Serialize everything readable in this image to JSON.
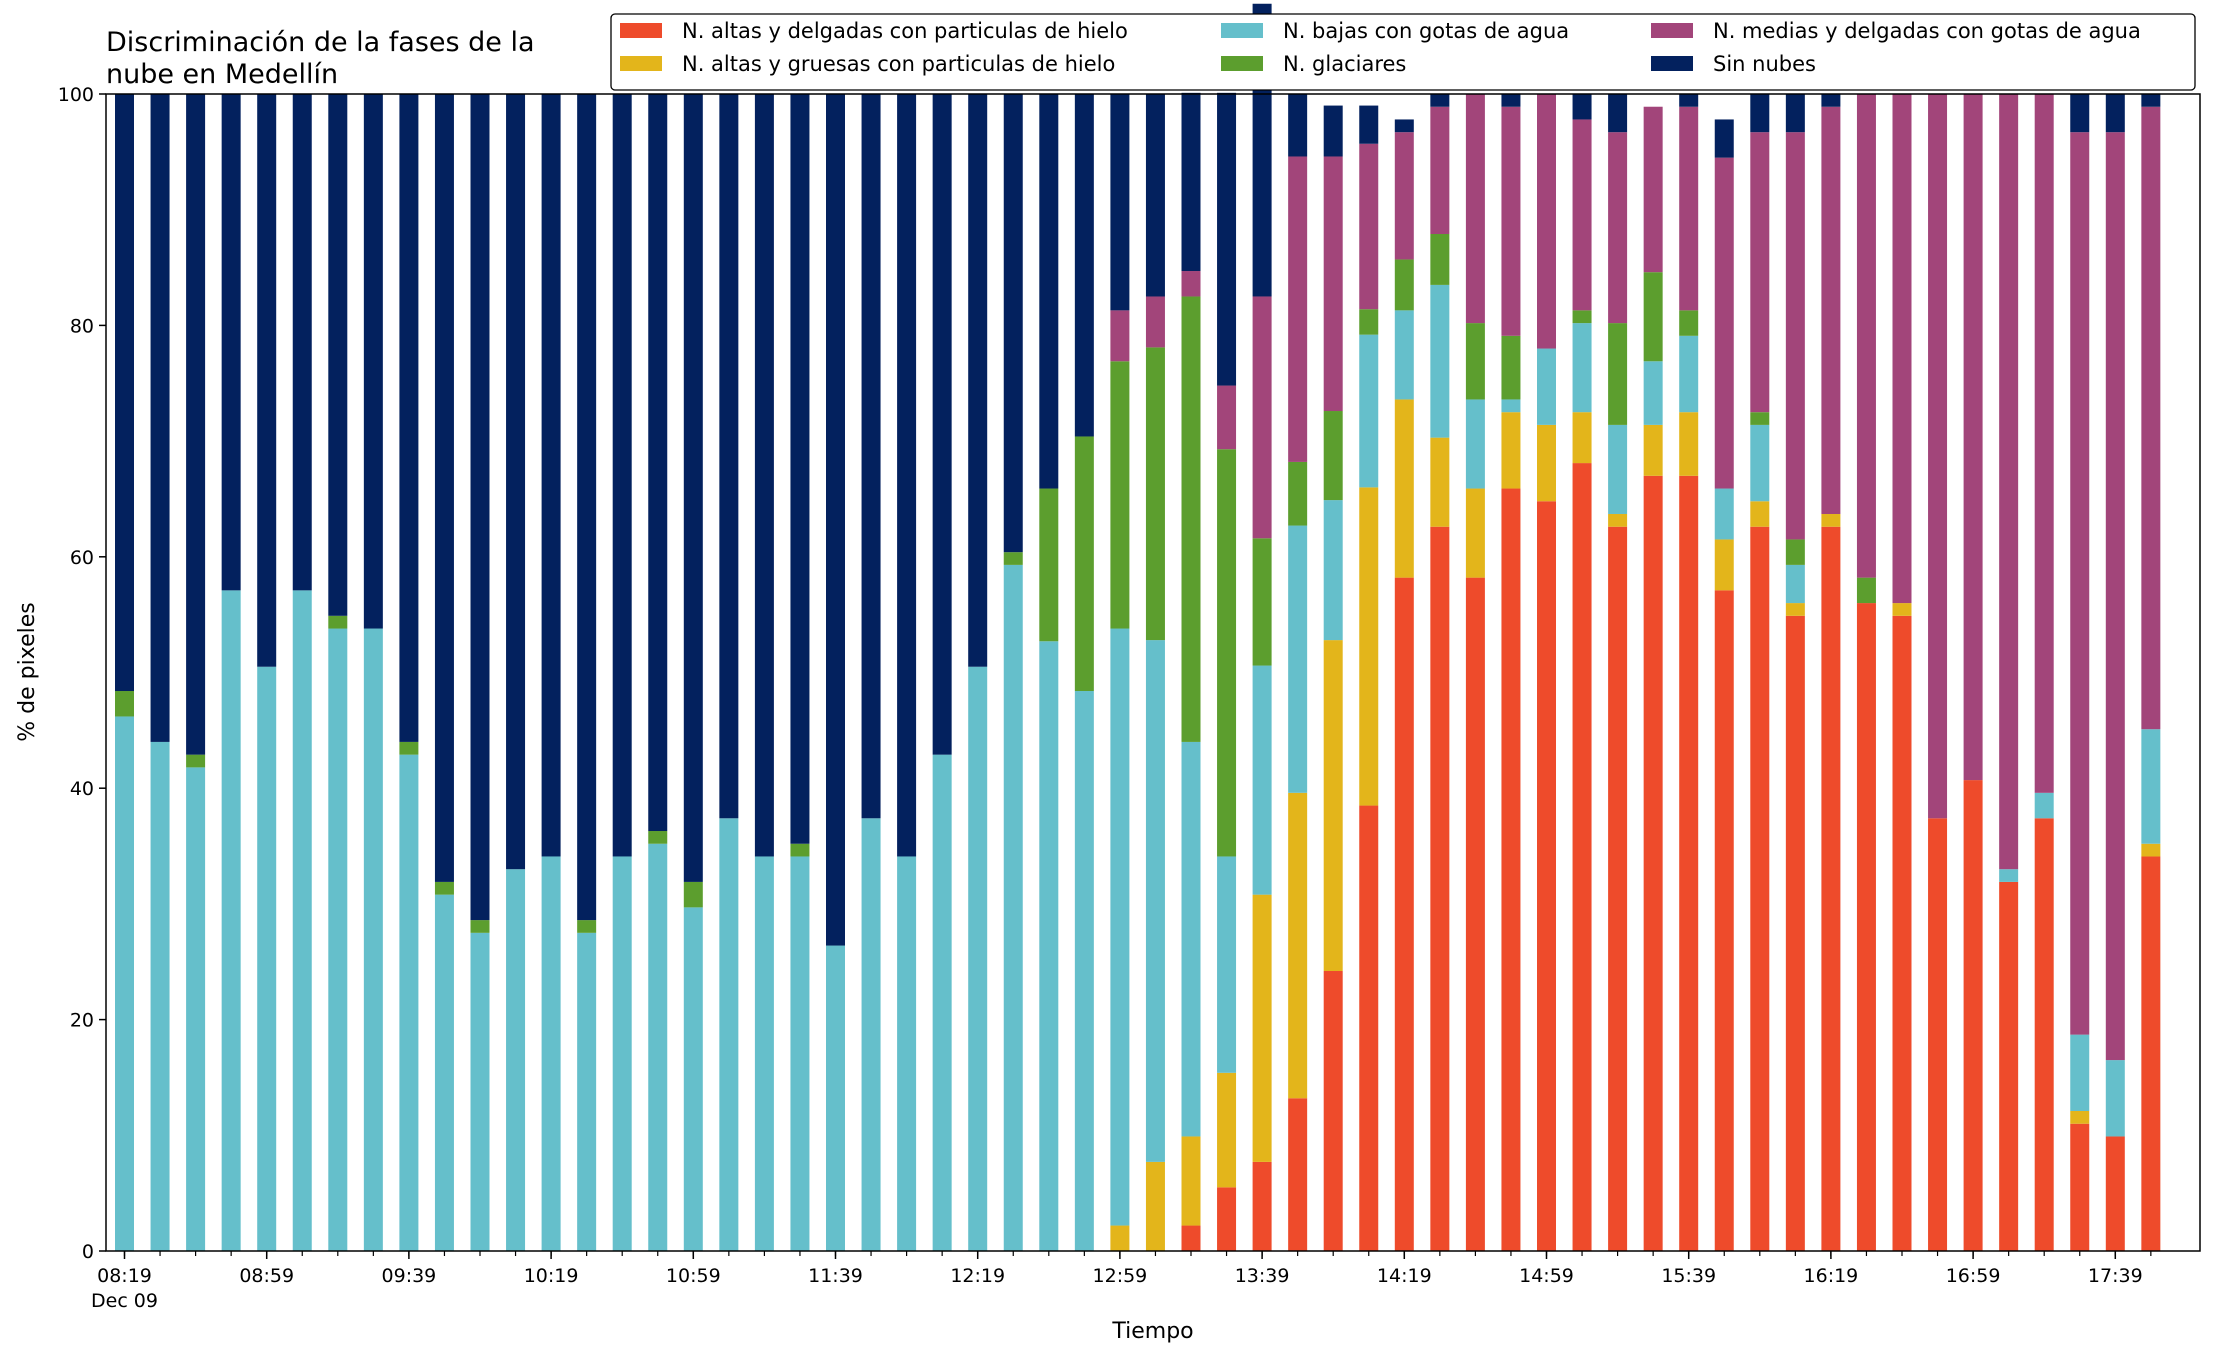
{
  "chart_data": {
    "type": "bar",
    "stacked": true,
    "title": "Discriminación de la fases de la\nnube en Medellín",
    "xlabel": "Tiempo",
    "ylabel": "% de pixeles",
    "ylim": [
      0,
      100
    ],
    "yticks": [
      "0",
      "20",
      "40",
      "60",
      "80",
      "100"
    ],
    "grid": false,
    "legend_position": "top-right",
    "x_date_label": "Dec 09",
    "x_tick_labels": [
      "08:19",
      "08:59",
      "09:39",
      "10:19",
      "10:59",
      "11:39",
      "12:19",
      "12:59",
      "13:39",
      "14:19",
      "14:59",
      "15:39",
      "16:19",
      "16:59",
      "17:39"
    ],
    "categories": [
      "08:19",
      "08:29",
      "08:39",
      "08:49",
      "08:59",
      "09:09",
      "09:19",
      "09:29",
      "09:39",
      "09:49",
      "09:59",
      "10:09",
      "10:19",
      "10:29",
      "10:39",
      "10:49",
      "10:59",
      "11:09",
      "11:19",
      "11:29",
      "11:39",
      "11:49",
      "11:59",
      "12:09",
      "12:19",
      "12:29",
      "12:39",
      "12:49",
      "12:59",
      "13:09",
      "13:19",
      "13:29",
      "13:39",
      "13:49",
      "13:59",
      "14:09",
      "14:19",
      "14:29",
      "14:39",
      "14:49",
      "14:59",
      "15:09",
      "15:19",
      "15:29",
      "15:39",
      "15:49",
      "15:59",
      "16:09",
      "16:19",
      "16:29",
      "16:39",
      "16:49",
      "16:59",
      "17:09",
      "17:19",
      "17:29",
      "17:39",
      "17:49"
    ],
    "series": [
      {
        "name": "N. altas y delgadas con particulas de hielo",
        "color": "#ee4b2b",
        "values": [
          0,
          0,
          0,
          0,
          0,
          0,
          0,
          0,
          0,
          0,
          0,
          0,
          0,
          0,
          0,
          0,
          0,
          0,
          0,
          0,
          0,
          0,
          0,
          0,
          0,
          0,
          0,
          0,
          0,
          0,
          2.2,
          5.5,
          7.7,
          13.2,
          24.2,
          38.5,
          58.2,
          62.6,
          58.2,
          65.9,
          64.8,
          68.1,
          62.6,
          67.0,
          67.0,
          57.1,
          62.6,
          54.9,
          62.6,
          56.0,
          54.9,
          37.4,
          40.7,
          31.9,
          37.4,
          11.0,
          9.9,
          34.1
        ]
      },
      {
        "name": "N. altas y gruesas con particulas de hielo",
        "color": "#e3b51b",
        "values": [
          0,
          0,
          0,
          0,
          0,
          0,
          0,
          0,
          0,
          0,
          0,
          0,
          0,
          0,
          0,
          0,
          0,
          0,
          0,
          0,
          0,
          0,
          0,
          0,
          0,
          0,
          0,
          0,
          2.2,
          7.7,
          7.7,
          9.9,
          23.1,
          26.4,
          28.6,
          27.5,
          15.4,
          7.7,
          7.7,
          6.6,
          6.6,
          4.4,
          1.1,
          4.4,
          5.5,
          4.4,
          2.2,
          1.1,
          1.1,
          0,
          1.1,
          0,
          0,
          0,
          0,
          1.1,
          0,
          1.1
        ]
      },
      {
        "name": "N. bajas con gotas de agua",
        "color": "#65bfcb",
        "values": [
          46.2,
          44.0,
          41.8,
          57.1,
          50.5,
          57.1,
          53.8,
          53.8,
          42.9,
          30.8,
          27.5,
          33.0,
          34.1,
          27.5,
          34.1,
          35.2,
          29.7,
          37.4,
          34.1,
          34.1,
          26.4,
          37.4,
          34.1,
          42.9,
          50.5,
          59.3,
          52.7,
          48.4,
          51.6,
          45.1,
          34.1,
          18.7,
          19.8,
          23.1,
          12.1,
          13.2,
          7.7,
          13.2,
          7.7,
          1.1,
          6.6,
          7.7,
          7.7,
          5.5,
          6.6,
          4.4,
          6.6,
          3.3,
          0,
          0,
          0,
          0,
          0,
          1.1,
          2.2,
          6.6,
          6.6,
          9.9
        ]
      },
      {
        "name": "N. glaciares",
        "color": "#5c9e2e",
        "values": [
          2.2,
          0,
          1.1,
          0,
          0,
          0,
          1.1,
          0,
          1.1,
          1.1,
          1.1,
          0,
          0,
          1.1,
          0,
          1.1,
          2.2,
          0,
          0,
          1.1,
          0,
          0,
          0,
          0,
          0,
          1.1,
          13.2,
          22.0,
          23.1,
          25.3,
          38.5,
          35.2,
          11.0,
          5.5,
          7.7,
          2.2,
          4.4,
          4.4,
          6.6,
          5.5,
          0,
          1.1,
          8.8,
          7.7,
          2.2,
          0,
          1.1,
          2.2,
          0,
          2.2,
          0,
          0,
          0,
          0,
          0,
          0,
          0,
          0
        ]
      },
      {
        "name": "N. medias y delgadas con gotas de agua",
        "color": "#a2457a",
        "values": [
          0,
          0,
          0,
          0,
          0,
          0,
          0,
          0,
          0,
          0,
          0,
          0,
          0,
          0,
          0,
          0,
          0,
          0,
          0,
          0,
          0,
          0,
          0,
          0,
          0,
          0,
          0,
          0,
          4.4,
          4.4,
          2.2,
          5.5,
          20.9,
          26.4,
          22.0,
          14.3,
          11.0,
          11.0,
          19.8,
          19.8,
          22.0,
          16.5,
          16.5,
          14.3,
          17.6,
          28.6,
          24.2,
          35.2,
          35.2,
          41.8,
          44.0,
          62.6,
          59.3,
          67.0,
          60.4,
          78.0,
          80.2,
          53.8
        ]
      },
      {
        "name": "Sin nubes",
        "color": "#03215e",
        "values": [
          51.6,
          56.0,
          57.1,
          42.9,
          49.5,
          42.9,
          45.1,
          46.2,
          56.0,
          68.1,
          71.4,
          67.0,
          65.9,
          71.4,
          65.9,
          63.7,
          68.1,
          62.6,
          65.9,
          64.8,
          73.6,
          62.6,
          65.9,
          57.1,
          49.5,
          39.6,
          34.1,
          29.6,
          18.7,
          17.5,
          15.4,
          25.3,
          25.3,
          5.4,
          4.4,
          3.3,
          1.1,
          1.1,
          0,
          1.1,
          0,
          2.2,
          3.3,
          0,
          1.1,
          3.3,
          3.3,
          3.3,
          1.1,
          0,
          0,
          0,
          0,
          0,
          0,
          3.3,
          3.3,
          1.1
        ]
      }
    ]
  }
}
